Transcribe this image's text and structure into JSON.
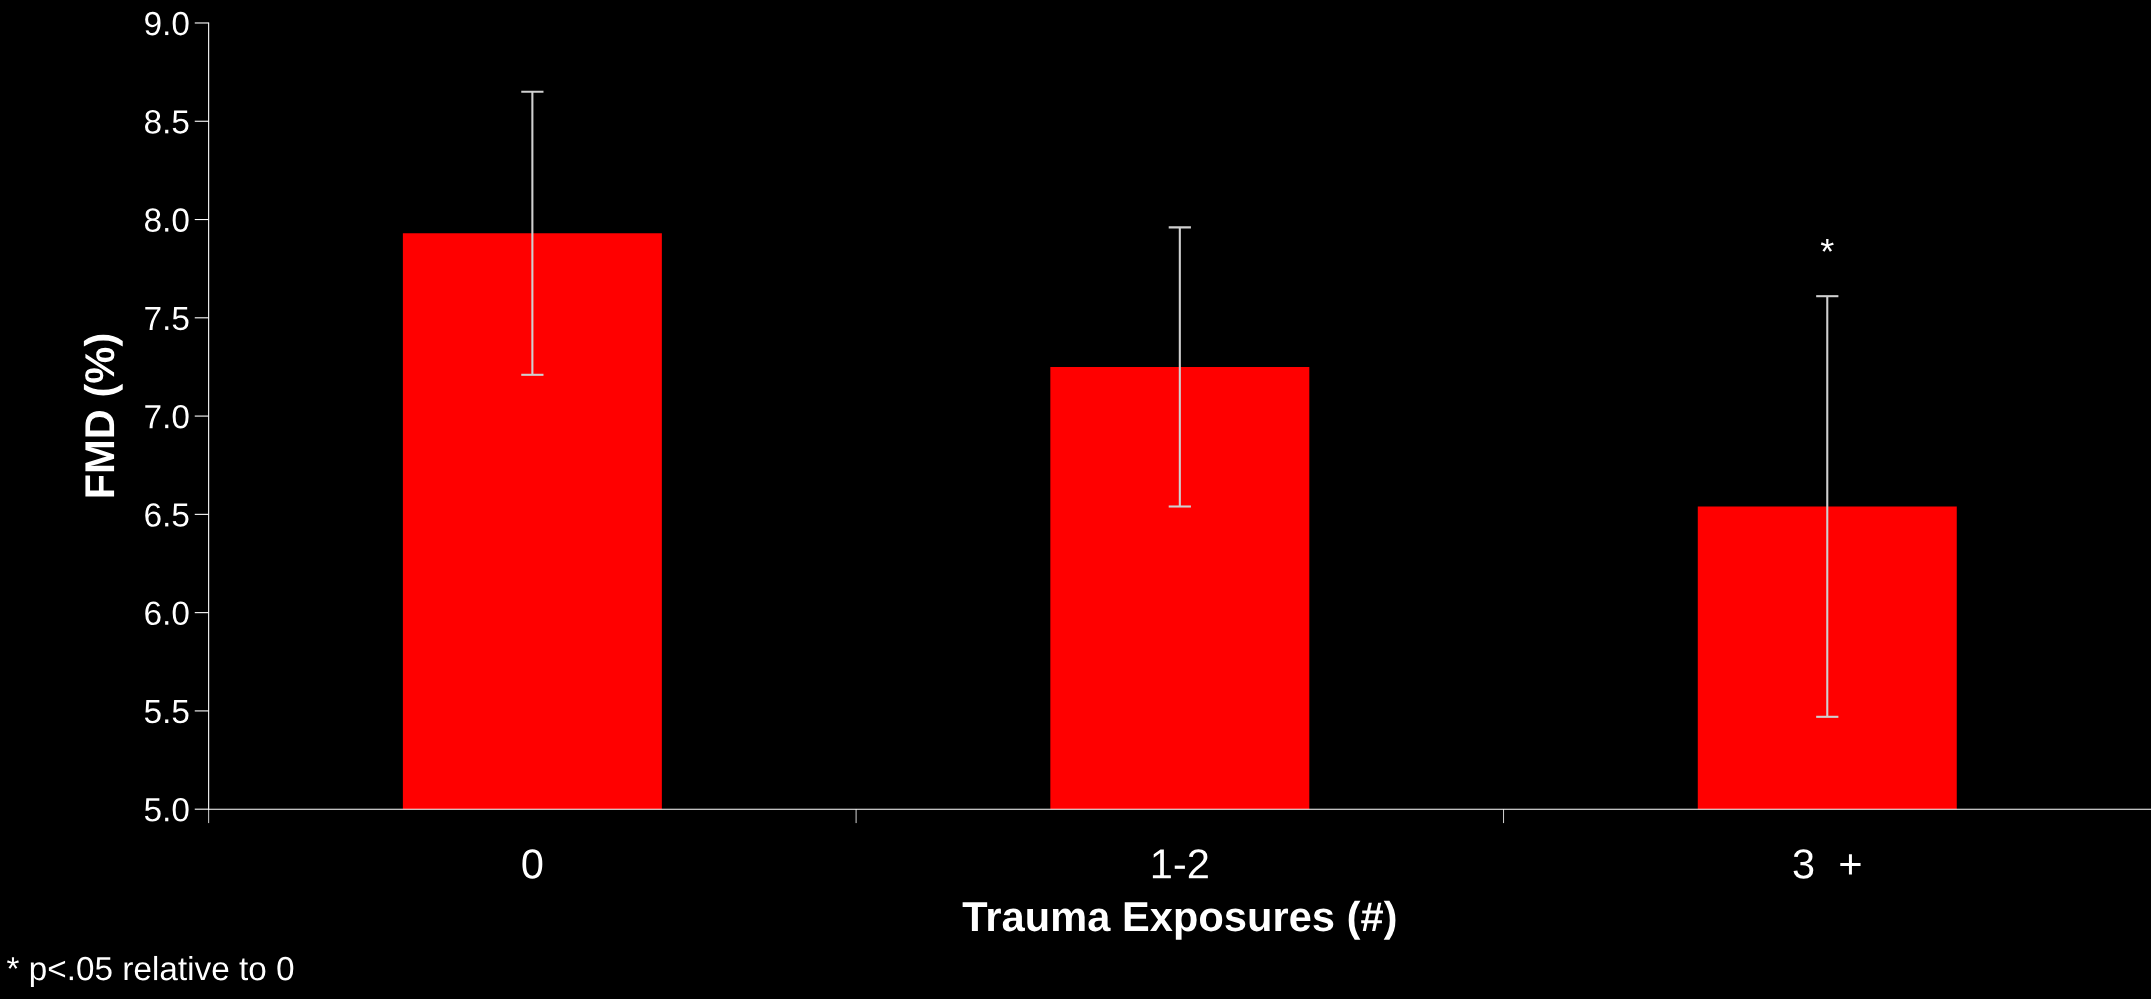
{
  "chart_data": {
    "type": "bar",
    "xlabel": "Trauma Exposures (#)",
    "ylabel": "FMD (%)",
    "categories": [
      "0",
      "1-2",
      "3  +"
    ],
    "values": [
      7.93,
      7.25,
      6.54
    ],
    "errors": [
      0.72,
      0.71,
      1.07
    ],
    "color": "#ff0000",
    "ylim": [
      5.0,
      9.0
    ],
    "yticks": [
      {
        "value": 5,
        "label": "5.0"
      },
      {
        "value": 5.5,
        "label": "5.5"
      },
      {
        "value": 6,
        "label": "6.0"
      },
      {
        "value": 6.5,
        "label": "6.5"
      },
      {
        "value": 7,
        "label": "7.0"
      },
      {
        "value": 7.5,
        "label": "7.5"
      },
      {
        "value": 8,
        "label": "8.0"
      },
      {
        "value": 8.5,
        "label": "8.5"
      },
      {
        "value": 9,
        "label": "9.0"
      }
    ],
    "annotations": [
      "*",
      "* p<.05 relative to 0"
    ],
    "grid": false,
    "legend": false
  }
}
